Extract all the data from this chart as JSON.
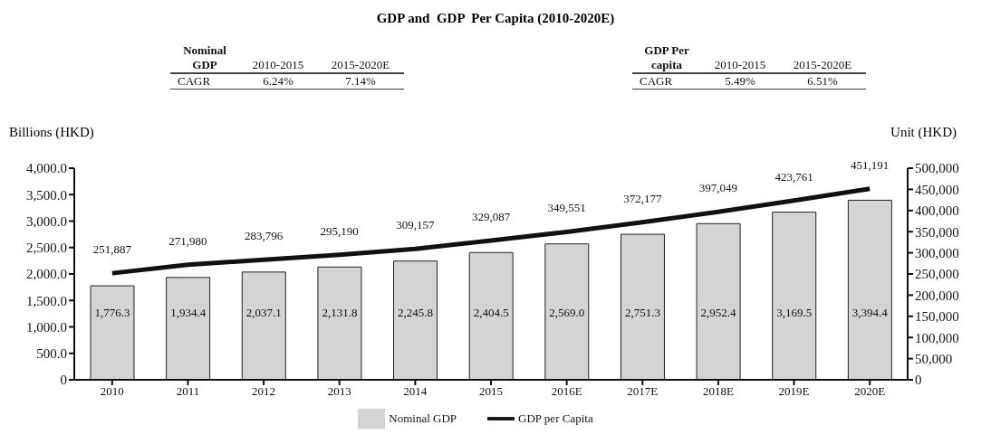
{
  "chart_data": {
    "type": "bar",
    "title": "GDP and  GDP  Per Capita (2010-2020E)",
    "categories": [
      "2010",
      "2011",
      "2012",
      "2013",
      "2014",
      "2015",
      "2016E",
      "2017E",
      "2018E",
      "2019E",
      "2020E"
    ],
    "series": [
      {
        "name": "Nominal GDP",
        "color": "#d4d4d4",
        "values": [
          1776.3,
          1934.4,
          2037.1,
          2131.8,
          2245.8,
          2404.5,
          2569.0,
          2751.3,
          2952.4,
          3169.5,
          3394.4
        ],
        "value_labels": [
          "1,776.3",
          "1,934.4",
          "2,037.1",
          "2,131.8",
          "2,245.8",
          "2,404.5",
          "2,569.0",
          "2,751.3",
          "2,952.4",
          "3,169.5",
          "3,394.4"
        ]
      },
      {
        "name": "GDP per Capita",
        "type": "line",
        "axis": "y2",
        "color": "#111111",
        "values": [
          251887,
          271980,
          283796,
          295190,
          309157,
          329087,
          349551,
          372177,
          397049,
          423761,
          451191
        ],
        "value_labels": [
          "251,887",
          "271,980",
          "283,796",
          "295,190",
          "309,157",
          "329,087",
          "349,551",
          "372,177",
          "397,049",
          "423,761",
          "451,191"
        ]
      }
    ],
    "ylabel": "Billions (HKD)",
    "y2label": "Unit (HKD)",
    "ylim": [
      0,
      4000
    ],
    "yticks": [
      0,
      {
        "value": 500,
        "label": "500.0"
      },
      {
        "value": 1000,
        "label": "1,000.0"
      },
      {
        "value": 1500,
        "label": "1,500.0"
      },
      {
        "value": 2000,
        "label": "2,000.0"
      },
      {
        "value": 2500,
        "label": "2,500.0"
      },
      {
        "value": 3000,
        "label": "3,000.0"
      },
      {
        "value": 3500,
        "label": "3,500.0"
      },
      {
        "value": 4000,
        "label": "4,000.0"
      }
    ],
    "y2lim": [
      0,
      500000
    ],
    "y2ticks": [
      0,
      {
        "value": 50000,
        "label": "50,000"
      },
      {
        "value": 100000,
        "label": "100,000"
      },
      {
        "value": 150000,
        "label": "150,000"
      },
      {
        "value": 200000,
        "label": "200,000"
      },
      {
        "value": 250000,
        "label": "250,000"
      },
      {
        "value": 300000,
        "label": "300,000"
      },
      {
        "value": 350000,
        "label": "350,000"
      },
      {
        "value": 400000,
        "label": "400,000"
      },
      {
        "value": 450000,
        "label": "450,000"
      },
      {
        "value": 500000,
        "label": "500,000"
      }
    ],
    "annotations": [
      "Nominal GDP",
      "2010-2015",
      "2015-2020E",
      "CAGR",
      "6.24%",
      "7.14%",
      "GDP Per capita",
      "2010-2015",
      "2015-2020E",
      "CAGR",
      "5.49%",
      "6.51%"
    ],
    "grid": false,
    "legend": "bottom",
    "marker": "none",
    "line_style": "solid"
  }
}
